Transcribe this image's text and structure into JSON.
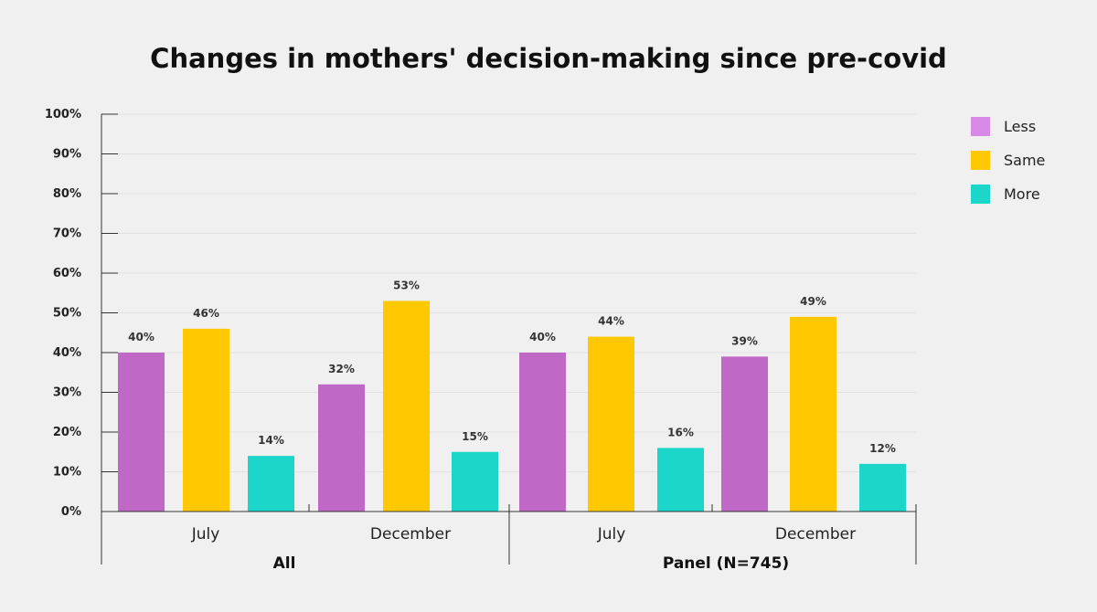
{
  "chart_data": {
    "type": "bar",
    "title": "Changes in mothers' decision-making since pre-covid",
    "groups": [
      "All",
      "Panel (N=745)"
    ],
    "categories": [
      "July",
      "December",
      "July",
      "December"
    ],
    "category_group": [
      0,
      0,
      1,
      1
    ],
    "series": [
      {
        "name": "Less",
        "color": "#bf68c6",
        "legend_color": "#d98ae6",
        "values": [
          40,
          32,
          40,
          39
        ],
        "labels": [
          "40%",
          "32%",
          "40%",
          "39%"
        ]
      },
      {
        "name": "Same",
        "color": "#ffc800",
        "legend_color": "#ffc800",
        "values": [
          46,
          53,
          44,
          49
        ],
        "labels": [
          "46%",
          "53%",
          "44%",
          "49%"
        ]
      },
      {
        "name": "More",
        "color": "#1dd6ca",
        "legend_color": "#1dd6ca",
        "values": [
          14,
          15,
          16,
          12
        ],
        "labels": [
          "14%",
          "15%",
          "16%",
          "12%"
        ]
      }
    ],
    "ylim": [
      0,
      100
    ],
    "yticks": [
      "0%",
      "10%",
      "20%",
      "30%",
      "40%",
      "50%",
      "60%",
      "70%",
      "80%",
      "90%",
      "100%"
    ],
    "grid": true,
    "legend_position": "top-right",
    "xlabel": "",
    "ylabel": ""
  }
}
